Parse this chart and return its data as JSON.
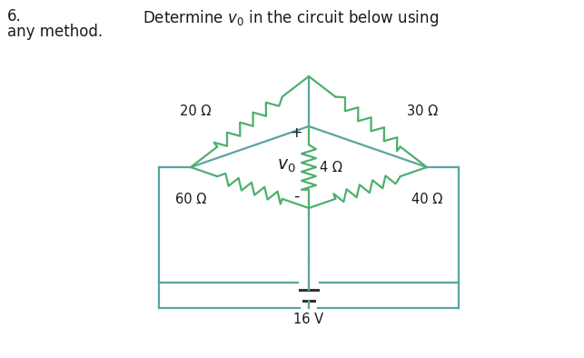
{
  "title_left": "6.",
  "title_right": "Determine $v_0$ in the circuit below using",
  "subtitle": "any method.",
  "line_color": "#5ba3a0",
  "resistor_color": "#4daf6e",
  "text_color": "#1a1a1a",
  "background_color": "#ffffff",
  "voltage_label": "16 V",
  "vo_label": "$v_0$",
  "plus_label": "+",
  "minus_label": "-",
  "R20_label": "20 Ω",
  "R30_label": "30 Ω",
  "R60_label": "60 Ω",
  "R40_label": "40 Ω",
  "R4_label": "4 Ω"
}
